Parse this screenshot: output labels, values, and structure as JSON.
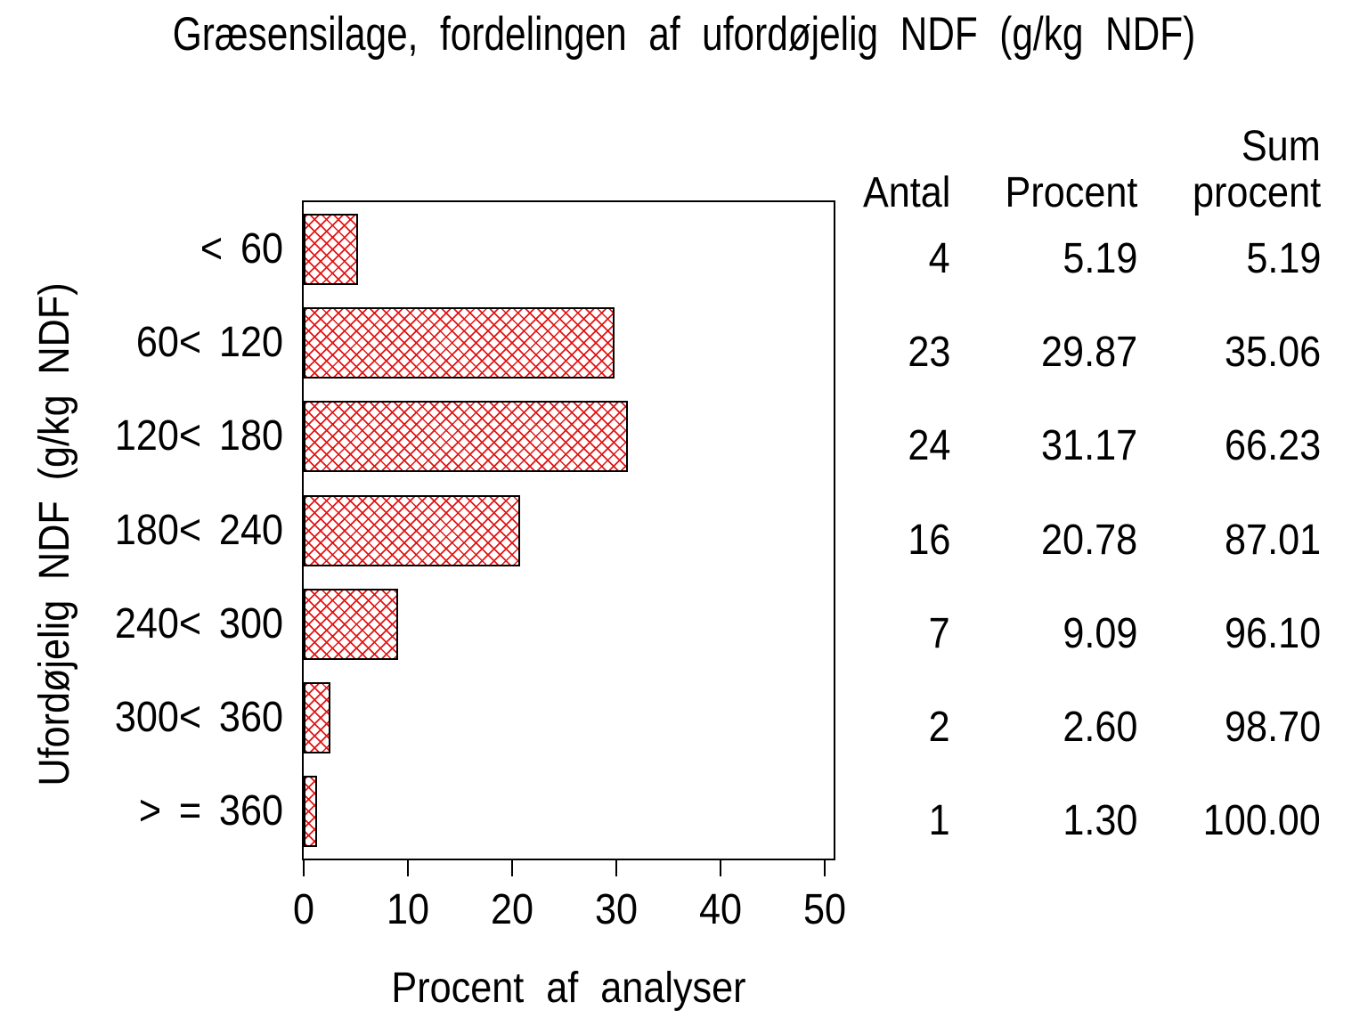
{
  "title": "Græsensilage, fordelingen af ufordøjelig NDF (g/kg NDF)",
  "chart_data": {
    "type": "bar",
    "orientation": "horizontal",
    "title": "Græsensilage, fordelingen af ufordøjelig NDF (g/kg NDF)",
    "xlabel": "Procent af analyser",
    "ylabel": "Ufordøjelig NDF (g/kg NDF)",
    "categories": [
      "< 60",
      "60< 120",
      "120< 180",
      "180< 240",
      "240< 300",
      "300< 360",
      "> = 360"
    ],
    "values": [
      5.19,
      29.87,
      31.17,
      20.78,
      9.09,
      2.6,
      1.3
    ],
    "xlim": [
      0,
      51
    ],
    "xticks": [
      0,
      10,
      20,
      30,
      40,
      50
    ],
    "grid": false,
    "legend": "none",
    "bar_style": {
      "fill": "crosshatch",
      "hatch_color": "#e41414",
      "outline_color": "#000000"
    }
  },
  "table": {
    "columns": [
      {
        "label": "Antal"
      },
      {
        "label": "Procent"
      },
      {
        "label_line1": "Sum",
        "label_line2": "procent"
      }
    ],
    "rows": [
      {
        "antal": "4",
        "procent": "5.19",
        "sum": "5.19"
      },
      {
        "antal": "23",
        "procent": "29.87",
        "sum": "35.06"
      },
      {
        "antal": "24",
        "procent": "31.17",
        "sum": "66.23"
      },
      {
        "antal": "16",
        "procent": "20.78",
        "sum": "87.01"
      },
      {
        "antal": "7",
        "procent": "9.09",
        "sum": "96.10"
      },
      {
        "antal": "2",
        "procent": "2.60",
        "sum": "98.70"
      },
      {
        "antal": "1",
        "procent": "1.30",
        "sum": "100.00"
      }
    ]
  },
  "colors": {
    "background": "#ffffff",
    "text": "#000000",
    "bar_hatch": "#e41414",
    "frame": "#000000"
  }
}
